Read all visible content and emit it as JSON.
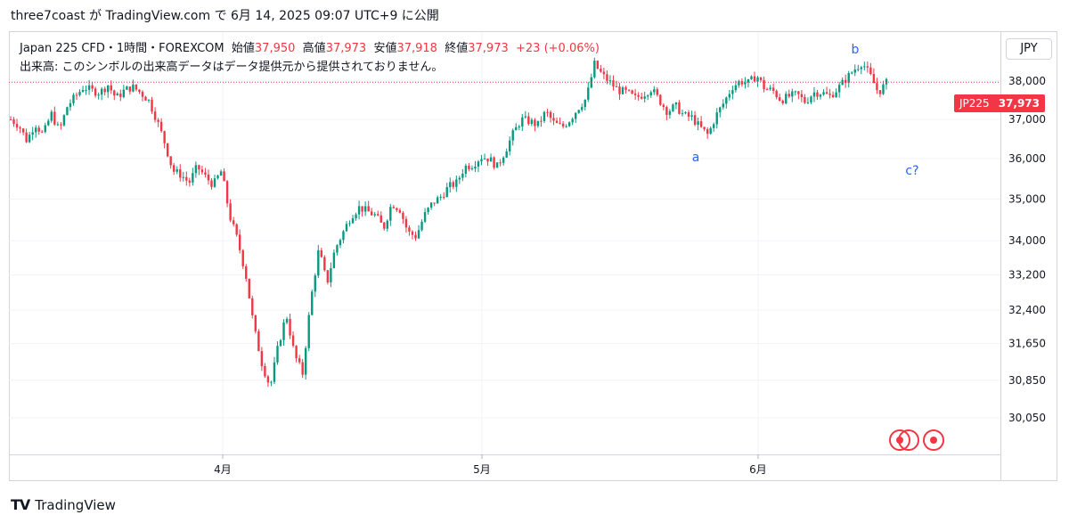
{
  "header": {
    "text": "three7coast が TradingView.com で 6月 14, 2025 09:07 UTC+9 に公開"
  },
  "legend": {
    "symbol": "Japan 225 CFD・1時間・FOREXCOM",
    "open_label": "始値",
    "open": "37,950",
    "high_label": "高値",
    "high": "37,973",
    "low_label": "安値",
    "low": "37,918",
    "close_label": "終値",
    "close": "37,973",
    "change": "+23 (+0.06%)",
    "volume_note": "出来高: このシンボルの出来高データはデータ提供元から提供されておりません。"
  },
  "currency_button": "JPY",
  "price_tag": {
    "symbol": "JP225",
    "price": "37,973"
  },
  "footer": {
    "logo": "TV",
    "brand": "TradingView"
  },
  "colors": {
    "up": "#089981",
    "down": "#f23645",
    "wave_label": "#2962ff",
    "price_line": "#f23645"
  },
  "chart_data": {
    "type": "line",
    "scale": "log",
    "x_ticks": [
      "4月",
      "5月",
      "6月"
    ],
    "y_ticks": [
      30050,
      30850,
      31650,
      32400,
      33200,
      34000,
      35000,
      36000,
      37000,
      38000
    ],
    "y_tick_labels": [
      "30,050",
      "30,850",
      "31,650",
      "32,400",
      "33,200",
      "34,000",
      "35,000",
      "36,000",
      "37,000",
      "38,000"
    ],
    "ylim": [
      29700,
      38500
    ],
    "last_price": 37973,
    "annotations": [
      {
        "text": "a",
        "price": 36300
      },
      {
        "text": "b",
        "price": 38500
      },
      {
        "text": "c?",
        "price": 35600
      }
    ],
    "series": [
      {
        "values": [
          37000,
          36850,
          36450,
          36900,
          36600,
          37150,
          36700,
          37350,
          37600,
          37850,
          37750,
          37700,
          37900,
          37550,
          37750,
          37850,
          37700,
          37500,
          37000,
          36400,
          35700,
          35600,
          35400,
          35800,
          35550,
          35350,
          35700,
          34600,
          34000,
          33200,
          32000,
          31200,
          30700,
          31600,
          32300,
          31400,
          31000,
          32600,
          33800,
          33000,
          33800,
          34200,
          34600,
          34800,
          34700,
          34600,
          34300,
          34900,
          34750,
          34200,
          34100,
          34600,
          34900,
          35050,
          35300,
          35400,
          35800,
          35850,
          36050,
          36000,
          35800,
          36200,
          36650,
          37000,
          36950,
          36850,
          37200,
          36900,
          36800,
          37000,
          37300,
          37550,
          38450,
          38150,
          37950,
          37750,
          37700,
          37550,
          37650,
          37800,
          37500,
          37200,
          37350,
          37100,
          37050,
          36800,
          36600,
          37100,
          37450,
          37850,
          38000,
          37950,
          38150,
          37800,
          37750,
          37500,
          37600,
          37650,
          37450,
          37700,
          37700,
          37600,
          37800,
          38050,
          38300,
          38500,
          38150,
          37700,
          37950
        ]
      }
    ]
  }
}
